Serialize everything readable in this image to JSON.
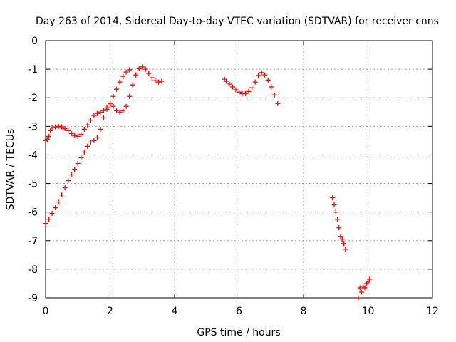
{
  "chart_data": {
    "type": "scatter",
    "title": "Day 263 of 2014, Sidereal Day-to-day VTEC variation (SDTVAR) for receiver cnns",
    "xlabel": "GPS time / hours",
    "ylabel": "SDTVAR / TECUs",
    "xlim": [
      0,
      12
    ],
    "ylim": [
      -9,
      0
    ],
    "xticks": [
      0,
      2,
      4,
      6,
      8,
      10,
      12
    ],
    "yticks": [
      0,
      -1,
      -2,
      -3,
      -4,
      -5,
      -6,
      -7,
      -8,
      -9
    ],
    "xtick_labels": [
      "0",
      "2",
      "4",
      "6",
      "8",
      "10",
      "12"
    ],
    "ytick_labels": [
      "0",
      "-1",
      "-2",
      "-3",
      "-4",
      "-5",
      "-6",
      "-7",
      "-8",
      "-9"
    ],
    "grid": true,
    "marker": "+",
    "color": "#ff0000",
    "segments": [
      {
        "x": [
          0.0,
          0.05,
          0.1,
          0.15,
          0.2,
          0.3,
          0.4,
          0.5,
          0.6,
          0.7,
          0.8,
          0.9,
          1.0,
          1.1,
          1.2,
          1.3,
          1.4,
          1.5,
          1.6,
          1.7,
          1.8,
          1.9,
          2.0,
          2.1,
          2.2,
          2.3,
          2.4,
          2.5,
          2.6
        ],
        "y": [
          -3.5,
          -3.45,
          -3.35,
          -3.15,
          -3.05,
          -3.02,
          -3.0,
          -3.02,
          -3.08,
          -3.15,
          -3.25,
          -3.32,
          -3.35,
          -3.28,
          -3.1,
          -2.95,
          -2.78,
          -2.62,
          -2.55,
          -2.5,
          -2.45,
          -2.35,
          -2.2,
          -1.95,
          -1.7,
          -1.45,
          -1.25,
          -1.1,
          -1.02
        ]
      },
      {
        "x": [
          0.0,
          0.1,
          0.2,
          0.3,
          0.4,
          0.5,
          0.6,
          0.7,
          0.8,
          0.9,
          1.0,
          1.1,
          1.2,
          1.3,
          1.4,
          1.5,
          1.6,
          1.7,
          1.8,
          1.9,
          2.0,
          2.1,
          2.2,
          2.3,
          2.4,
          2.5,
          2.6,
          2.7,
          2.8,
          2.9,
          3.0,
          3.1,
          3.2,
          3.3,
          3.4,
          3.5,
          3.6
        ],
        "y": [
          -6.4,
          -6.25,
          -6.05,
          -5.85,
          -5.65,
          -5.4,
          -5.15,
          -4.9,
          -4.7,
          -4.5,
          -4.3,
          -4.1,
          -3.9,
          -3.7,
          -3.55,
          -3.5,
          -3.4,
          -3.1,
          -2.7,
          -2.4,
          -2.25,
          -2.3,
          -2.45,
          -2.5,
          -2.45,
          -2.3,
          -1.95,
          -1.55,
          -1.2,
          -0.98,
          -0.92,
          -1.0,
          -1.15,
          -1.3,
          -1.4,
          -1.45,
          -1.42
        ]
      },
      {
        "x": [
          5.55,
          5.6,
          5.7,
          5.8,
          5.9,
          6.0,
          6.1,
          6.2,
          6.3,
          6.4,
          6.5,
          6.6,
          6.7,
          6.8,
          6.9,
          7.0,
          7.1,
          7.2
        ],
        "y": [
          -1.35,
          -1.42,
          -1.52,
          -1.62,
          -1.72,
          -1.8,
          -1.86,
          -1.85,
          -1.78,
          -1.65,
          -1.45,
          -1.22,
          -1.12,
          -1.2,
          -1.38,
          -1.62,
          -1.9,
          -2.2
        ]
      },
      {
        "x": [
          8.9,
          8.95,
          9.0,
          9.05,
          9.1,
          9.15,
          9.2,
          9.25,
          9.3
        ],
        "y": [
          -5.5,
          -5.75,
          -6.0,
          -6.25,
          -6.55,
          -6.85,
          -6.95,
          -7.1,
          -7.3
        ]
      },
      {
        "x": [
          9.7,
          9.75,
          9.8,
          9.85,
          9.9,
          9.95,
          10.0,
          10.05
        ],
        "y": [
          -9.0,
          -8.65,
          -8.8,
          -8.6,
          -8.65,
          -8.5,
          -8.45,
          -8.35
        ]
      }
    ]
  }
}
